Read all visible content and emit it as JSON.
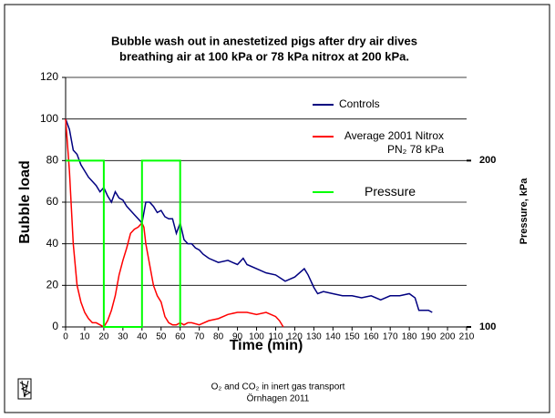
{
  "chart_data": {
    "type": "line",
    "title": [
      "Bubble wash out in anestetized pigs after dry air dives",
      "breathing air at 100 kPa or 78 kPa nitrox at 200 kPa."
    ],
    "xlabel": "Time (min)",
    "ylabel": "Bubble load",
    "y2label": "Pressure, kPa",
    "xlim": [
      0,
      210
    ],
    "xticks": [
      0,
      10,
      20,
      30,
      40,
      50,
      60,
      70,
      80,
      90,
      100,
      110,
      120,
      130,
      140,
      150,
      160,
      170,
      180,
      190,
      200,
      210
    ],
    "ylim": [
      0,
      120
    ],
    "yticks": [
      0,
      20,
      40,
      60,
      80,
      100,
      120
    ],
    "y2lim": [
      100,
      250
    ],
    "y2ticks": [
      100,
      200
    ],
    "grid": true,
    "series": [
      {
        "name": "Controls",
        "color": "#000080",
        "x": [
          0,
          2,
          4,
          6,
          8,
          10,
          12,
          14,
          16,
          18,
          20,
          22,
          24,
          26,
          28,
          30,
          32,
          34,
          36,
          38,
          40,
          42,
          44,
          46,
          48,
          50,
          52,
          54,
          56,
          58,
          60,
          62,
          64,
          66,
          68,
          70,
          72,
          75,
          80,
          85,
          90,
          93,
          95,
          100,
          105,
          110,
          115,
          120,
          125,
          127,
          130,
          132,
          135,
          140,
          145,
          150,
          155,
          160,
          165,
          170,
          175,
          180,
          183,
          185,
          190,
          192
        ],
        "values": [
          100,
          95,
          85,
          83,
          78,
          75,
          72,
          70,
          68,
          65,
          67,
          63,
          60,
          65,
          62,
          61,
          58,
          56,
          54,
          52,
          50,
          60,
          60,
          58,
          55,
          56,
          53,
          52,
          52,
          45,
          50,
          42,
          40,
          40,
          38,
          37,
          35,
          33,
          31,
          32,
          30,
          33,
          30,
          28,
          26,
          25,
          22,
          24,
          28,
          25,
          19,
          16,
          17,
          16,
          15,
          15,
          14,
          15,
          13,
          15,
          15,
          16,
          14,
          8,
          8,
          7
        ]
      },
      {
        "name": "Average 2001 Nitrox PN₂ 78 kPa",
        "color": "#ff0000",
        "x": [
          0,
          2,
          4,
          6,
          8,
          10,
          12,
          14,
          16,
          18,
          20,
          22,
          24,
          26,
          28,
          30,
          32,
          34,
          36,
          38,
          40,
          41,
          42,
          44,
          46,
          48,
          50,
          52,
          54,
          56,
          58,
          60,
          62,
          64,
          66,
          70,
          75,
          80,
          85,
          90,
          95,
          100,
          105,
          110,
          112,
          114
        ],
        "values": [
          100,
          75,
          40,
          20,
          12,
          7,
          4,
          2,
          2,
          1,
          0,
          3,
          8,
          15,
          25,
          32,
          38,
          45,
          47,
          48,
          50,
          48,
          40,
          30,
          20,
          15,
          12,
          5,
          2,
          1,
          1,
          2,
          1,
          2,
          2,
          1,
          3,
          4,
          6,
          7,
          7,
          6,
          7,
          5,
          3,
          0
        ]
      },
      {
        "name": "Pressure",
        "color": "#00ff00",
        "axis": "y2",
        "x": [
          0,
          20,
          20,
          40,
          40,
          60,
          60
        ],
        "values": [
          200,
          200,
          100,
          100,
          200,
          200,
          100
        ]
      }
    ]
  },
  "footer": [
    "O₂ and CO₂ in inert gas transport",
    "Örnhagen 2011"
  ]
}
